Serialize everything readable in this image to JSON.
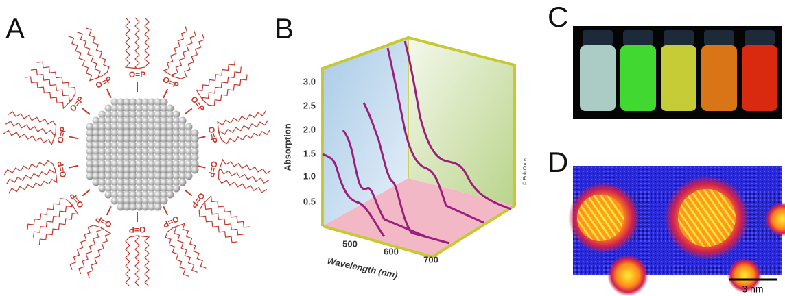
{
  "panels": [
    {
      "label": "A",
      "ligand_label": "O=P"
    },
    {
      "label": "B",
      "y_axis_label": "Absorption",
      "y_ticks": [
        "3.0",
        "2.5",
        "2.0",
        "1.5",
        "1.0",
        "0.5"
      ],
      "x_ticks": [
        500,
        600,
        700
      ],
      "x_axis_label": "Wavelength (nm)",
      "credit": "© Bob Cmns"
    },
    {
      "label": "C"
    },
    {
      "label": "D",
      "scale_bar": "3 nm"
    }
  ]
}
